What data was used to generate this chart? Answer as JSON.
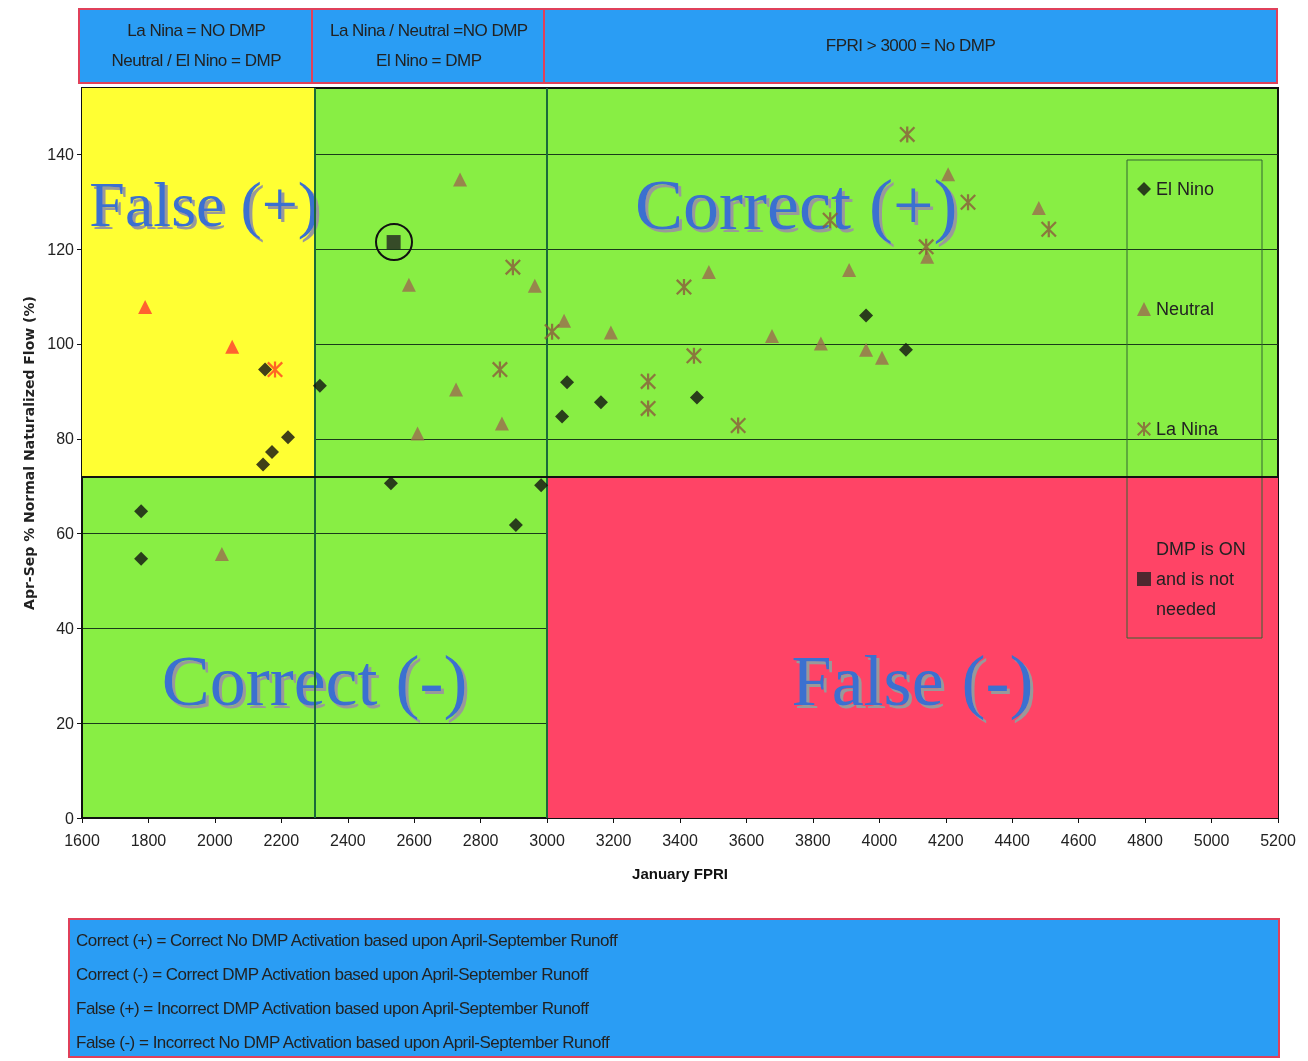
{
  "chart_data": {
    "type": "scatter",
    "xlabel": "January FPRI",
    "ylabel": "Apr-Sep % Normal Naturalized Flow (%)",
    "xlim": [
      1600,
      5200
    ],
    "xticks": [
      1600,
      1800,
      2000,
      2200,
      2400,
      2600,
      2800,
      3000,
      3200,
      3400,
      3600,
      3800,
      4000,
      4200,
      4400,
      4600,
      4800,
      5000,
      5200
    ],
    "ylim": [
      0,
      154
    ],
    "yticks": [
      0,
      20,
      40,
      60,
      80,
      100,
      120,
      140
    ],
    "grid": "y",
    "legend": "right",
    "ref_lines": [
      {
        "axis": "x",
        "value": 2300,
        "color": "#1a6a3a"
      },
      {
        "axis": "x",
        "value": 3000,
        "color": "#1a6a3a"
      },
      {
        "axis": "y",
        "value": 72,
        "color": "#111111"
      }
    ],
    "bands": [
      {
        "axis": "x",
        "from": 1600,
        "to": 2300,
        "color": "#ffff33"
      },
      {
        "axis": "x",
        "from": 3000,
        "to": 5200,
        "color": "#ff4466"
      }
    ],
    "annotations": [
      "False (+)",
      "Correct (+)",
      "Correct (-)",
      "False (-)",
      "La Nina = NO DMP\nNeutral / El Nino = DMP",
      "La Nina / Neutral =NO DMP\nEl Nino = DMP",
      "FPRI > 3000 = No DMP",
      "Correct (+) = Correct No DMP Activation based upon April-September Runoff\nCorrect (-) = Correct DMP Activation based upon April-September Runoff\nFalse (+) = Incorrect DMP Activation based upon April-September Runoff\nFalse (-) = Incorrect No DMP Activation based upon April-September Runoff"
    ],
    "series": [
      {
        "name": "El Nino",
        "color": "#111111",
        "marker": "diamond",
        "x": [
          1778,
          1778,
          2151,
          2145,
          2172,
          2220,
          2316,
          2530,
          2906,
          2982,
          3060,
          3045,
          3162,
          3451,
          3960,
          4080
        ],
        "values": [
          64.7,
          54.7,
          94.6,
          74.6,
          77.2,
          80.3,
          91.2,
          70.6,
          61.8,
          70.2,
          91.9,
          84.7,
          87.7,
          88.7,
          106,
          98.8
        ]
      },
      {
        "name": "Neutral",
        "color": "#9b6b4f",
        "marker": "triangle",
        "colors": [
          "#ff3b2f",
          "#ff3b2f",
          "#9b6b4f",
          "#9b6b4f",
          "#9b6b4f",
          "#9b6b4f",
          "#9b6b4f",
          "#9b6b4f",
          "#9b6b4f",
          "#9b6b4f",
          "#9b6b4f",
          "#9b6b4f",
          "#9b6b4f",
          "#9b6b4f",
          "#9b6b4f",
          "#9b6b4f",
          "#9b6b4f",
          "#9b6b4f",
          "#9b6b4f",
          "#9b6b4f"
        ],
        "x": [
          1790,
          2052,
          2021,
          2584,
          2738,
          2610,
          2726,
          2864,
          2963,
          3051,
          3192,
          3487,
          3677,
          3824,
          3909,
          3960,
          4008,
          4207,
          4144,
          4480
        ],
        "values": [
          107.8,
          99.4,
          55.7,
          112.5,
          134.7,
          81.1,
          90.4,
          83.2,
          112.3,
          104.9,
          102.4,
          115.2,
          101.7,
          100.1,
          115.6,
          98.8,
          97.1,
          135.8,
          118.4,
          128.7
        ]
      },
      {
        "name": "La Nina",
        "color": "#8b5a3c",
        "marker": "cross",
        "colors": [
          "#ff4020",
          "#8b5a3c",
          "#8b5a3c",
          "#8b5a3c",
          "#8b5a3c",
          "#8b5a3c",
          "#8b5a3c",
          "#8b5a3c",
          "#8b5a3c",
          "#8b5a3c",
          "#8b5a3c",
          "#8b5a3c",
          "#8b5a3c",
          "#8b5a3c"
        ],
        "x": [
          2181,
          2897,
          2858,
          3015,
          3304,
          3304,
          3412,
          3442,
          3575,
          3852,
          4084,
          4267,
          4141,
          4510
        ],
        "values": [
          94.6,
          116.2,
          94.6,
          102.6,
          92.1,
          86.4,
          112.0,
          97.5,
          82.8,
          126.1,
          144.2,
          129.9,
          120.5,
          124.2
        ]
      },
      {
        "name": "DMP is ON and is not needed",
        "color": "#222222",
        "marker": "square",
        "x": [
          2538
        ],
        "values": [
          121.5
        ]
      }
    ]
  }
}
